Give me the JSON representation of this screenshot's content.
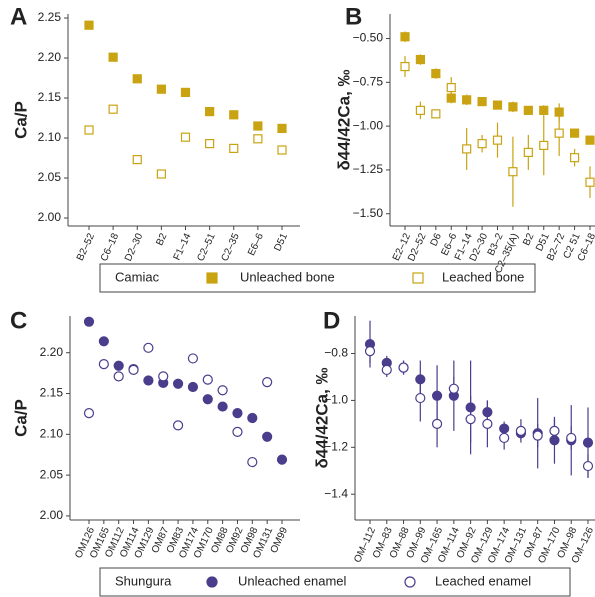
{
  "chart_data": [
    {
      "type": "scatter",
      "panel": "A",
      "ylabel": "Ca/P",
      "legend_title": "Camiac",
      "categories": [
        "B2–52",
        "C6–18",
        "D2–30",
        "B2",
        "F1–14",
        "C2–51",
        "C2–35",
        "E6–6",
        "D51"
      ],
      "series": [
        {
          "name": "Unleached bone",
          "color": "#c9a312",
          "marker": "square",
          "filled": true,
          "values": [
            2.241,
            2.201,
            2.174,
            2.161,
            2.157,
            2.133,
            2.129,
            2.115,
            2.112
          ]
        },
        {
          "name": "Leached bone",
          "color": "#c9a312",
          "marker": "square",
          "filled": false,
          "values": [
            2.11,
            2.136,
            2.073,
            2.055,
            2.101,
            2.093,
            2.087,
            2.099,
            2.085
          ]
        }
      ],
      "ylim": [
        1.99,
        2.255
      ],
      "yticks": [
        {
          "value": 2.0,
          "label": "2.00"
        },
        2.05,
        {
          "value": 2.1,
          "label": "2.10"
        },
        2.15,
        {
          "value": 2.2,
          "label": "2.20"
        },
        2.25
      ]
    },
    {
      "type": "scatter",
      "panel": "B",
      "ylabel": "δ44/42Ca, ‰",
      "categories": [
        "E2–12",
        "D2–52",
        "D6",
        "E6–6",
        "F1–14",
        "D2–30",
        "B3–2",
        "C2–35(A)",
        "B2",
        "D51",
        "B2–72",
        "C2 51",
        "C6–18"
      ],
      "series": [
        {
          "color": "#c9a312",
          "marker": "square",
          "filled": true,
          "values": [
            -0.49,
            -0.62,
            -0.7,
            -0.84,
            -0.85,
            -0.86,
            -0.88,
            -0.89,
            -0.91,
            -0.91,
            -0.92,
            -1.04,
            -1.08
          ],
          "errors": [
            0.03,
            0.03,
            0.03,
            0.03,
            0.03,
            0.02,
            0.02,
            0.03,
            0.02,
            0.03,
            0.05,
            0.02,
            0.02
          ]
        },
        {
          "color": "#c9a312",
          "marker": "square",
          "filled": false,
          "values": [
            -0.66,
            -0.91,
            -0.93,
            -0.78,
            -1.13,
            -1.1,
            -1.08,
            -1.26,
            -1.15,
            -1.11,
            -1.04,
            -1.18,
            -1.32
          ],
          "errors": [
            0.06,
            0.05,
            0.02,
            0.06,
            0.12,
            0.05,
            0.1,
            0.2,
            0.1,
            0.17,
            0.13,
            0.05,
            0.09
          ]
        }
      ],
      "ylim": [
        -1.57,
        -0.36
      ],
      "yticks": [
        {
          "value": -0.5,
          "label": "−0.50"
        },
        {
          "value": -0.75,
          "label": "−0.75"
        },
        {
          "value": -1.0,
          "label": "−1.00"
        },
        {
          "value": -1.25,
          "label": "−1.25"
        },
        {
          "value": -1.5,
          "label": "−1.50"
        }
      ]
    },
    {
      "type": "scatter",
      "panel": "C",
      "ylabel": "Ca/P",
      "legend_title": "Shungura",
      "categories": [
        "OM126",
        "OM165",
        "OM112",
        "OM114",
        "OM129",
        "OM87",
        "OM83",
        "OM174",
        "OM170",
        "OM88",
        "OM92",
        "OM98",
        "OM131",
        "OM99"
      ],
      "series": [
        {
          "name": "Unleached enamel",
          "color": "#4a3d8c",
          "marker": "circle",
          "filled": true,
          "values": [
            2.238,
            2.214,
            2.184,
            2.18,
            2.166,
            2.163,
            2.162,
            2.158,
            2.143,
            2.134,
            2.126,
            2.12,
            2.097,
            2.069
          ]
        },
        {
          "name": "Leached enamel",
          "color": "#4a3d8c",
          "marker": "circle",
          "filled": false,
          "values": [
            2.126,
            2.186,
            2.171,
            2.179,
            2.206,
            2.171,
            2.111,
            2.193,
            2.167,
            2.154,
            2.103,
            2.066,
            2.164,
            null
          ]
        }
      ],
      "ylim": [
        1.995,
        2.245
      ],
      "yticks": [
        {
          "value": 2.0,
          "label": "2.00"
        },
        2.05,
        {
          "value": 2.1,
          "label": "2.10"
        },
        2.15,
        {
          "value": 2.2,
          "label": "2.20"
        }
      ]
    },
    {
      "type": "scatter",
      "panel": "D",
      "ylabel": "δ44/42Ca, ‰",
      "categories": [
        "OM–112",
        "OM–83",
        "OM–88",
        "OM–99",
        "OM–165",
        "OM–114",
        "OM–92",
        "OM–129",
        "OM–174",
        "OM–131",
        "OM–87",
        "OM–170",
        "OM–98",
        "OM–126"
      ],
      "series": [
        {
          "color": "#4a3d8c",
          "marker": "circle",
          "filled": true,
          "values": [
            -0.76,
            -0.84,
            -0.86,
            -0.91,
            -0.98,
            -0.98,
            -1.03,
            -1.05,
            -1.12,
            -1.14,
            -1.14,
            -1.17,
            -1.17,
            -1.18
          ],
          "errors": [
            0.1,
            0.03,
            0.03,
            0.08,
            0.13,
            0.15,
            0.2,
            0.05,
            0.03,
            0.03,
            0.15,
            0.1,
            0.15,
            0.15
          ]
        },
        {
          "color": "#4a3d8c",
          "marker": "circle",
          "filled": false,
          "values": [
            -0.79,
            -0.87,
            -0.86,
            -0.99,
            -1.1,
            -0.95,
            -1.08,
            -1.1,
            -1.16,
            -1.13,
            -1.15,
            -1.13,
            -1.16,
            -1.28
          ],
          "errors": [
            0.05,
            0.03,
            0.03,
            0.1,
            0.1,
            0.05,
            0.1,
            0.1,
            0.05,
            0.05,
            0.05,
            0.05,
            0.05,
            0.05
          ]
        }
      ],
      "ylim": [
        -1.51,
        -0.64
      ],
      "yticks": [
        {
          "value": -0.8,
          "label": "−0.8"
        },
        {
          "value": -1.0,
          "label": "−1.0"
        },
        {
          "value": -1.2,
          "label": "−1.2"
        },
        {
          "value": -1.4,
          "label": "−1.4"
        }
      ]
    }
  ]
}
